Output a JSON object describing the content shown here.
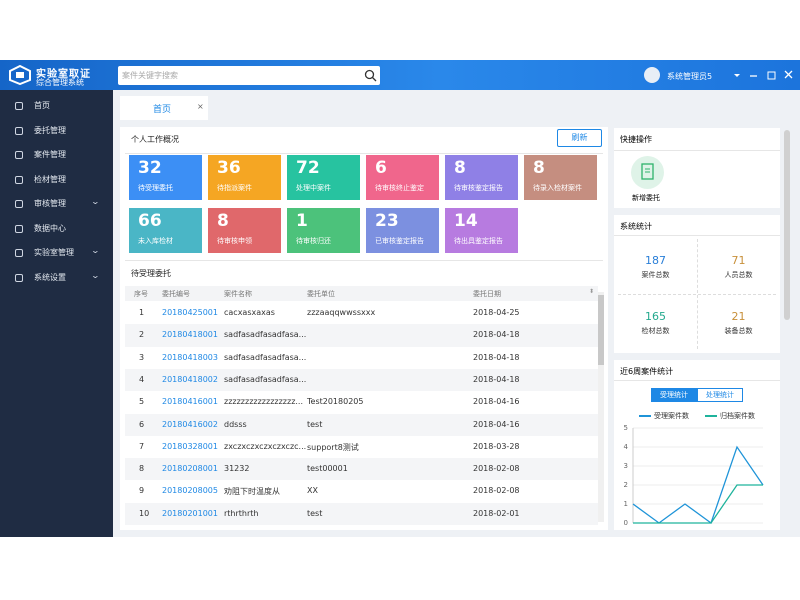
{
  "header": {
    "logo_line1": "实验室取证",
    "logo_line2": "综合管理系统",
    "search_placeholder": "案件关键字搜索",
    "user": "系统管理员5"
  },
  "sidebar": {
    "items": [
      {
        "label": "首页",
        "has_children": false
      },
      {
        "label": "委托管理",
        "has_children": false
      },
      {
        "label": "案件管理",
        "has_children": false
      },
      {
        "label": "检材管理",
        "has_children": false
      },
      {
        "label": "审核管理",
        "has_children": true
      },
      {
        "label": "数据中心",
        "has_children": false
      },
      {
        "label": "实验室管理",
        "has_children": true
      },
      {
        "label": "系统设置",
        "has_children": true
      }
    ]
  },
  "tab": {
    "label": "首页"
  },
  "overview": {
    "title": "个人工作概况",
    "refresh": "刷新",
    "tiles": [
      {
        "value": 32,
        "label": "待受理委托",
        "color": "#3c8ff5"
      },
      {
        "value": 36,
        "label": "待指派案件",
        "color": "#f5a623"
      },
      {
        "value": 72,
        "label": "处理中案件",
        "color": "#27c3a0"
      },
      {
        "value": 6,
        "label": "待审核终止鉴定",
        "color": "#f0668c"
      },
      {
        "value": 8,
        "label": "待审核鉴定报告",
        "color": "#8f80e6"
      },
      {
        "value": 8,
        "label": "待录入检材案件",
        "color": "#c58e80"
      },
      {
        "value": 66,
        "label": "未入库检材",
        "color": "#4ab6c6"
      },
      {
        "value": 8,
        "label": "待审核申领",
        "color": "#e0686b"
      },
      {
        "value": 1,
        "label": "待审核归还",
        "color": "#4cc27b"
      },
      {
        "value": 23,
        "label": "已审核鉴定报告",
        "color": "#7c90e0"
      },
      {
        "value": 14,
        "label": "待出具鉴定报告",
        "color": "#b77be0"
      }
    ]
  },
  "table": {
    "title": "待受理委托",
    "columns": [
      "序号",
      "委托编号",
      "案件名称",
      "委托单位",
      "委托日期"
    ],
    "rows": [
      [
        1,
        "20180425001",
        "cacxasxaxas",
        "zzzaaqqwwssxxx",
        "2018-04-25"
      ],
      [
        2,
        "20180418001",
        "sadfasadfasadfasa...",
        null,
        "2018-04-18"
      ],
      [
        3,
        "20180418003",
        "sadfasadfasadfasa...",
        null,
        "2018-04-18"
      ],
      [
        4,
        "20180418002",
        "sadfasadfasadfasa...",
        null,
        "2018-04-18"
      ],
      [
        5,
        "20180416001",
        "zzzzzzzzzzzzzzzzz...",
        "Test20180205",
        "2018-04-16"
      ],
      [
        6,
        "20180416002",
        "ddsss",
        "test",
        "2018-04-16"
      ],
      [
        7,
        "20180328001",
        "zxczxczxczxczxczc...",
        "support8测试",
        "2018-03-28"
      ],
      [
        8,
        "20180208001",
        "31232",
        "test00001",
        "2018-02-08"
      ],
      [
        9,
        "20180208005",
        "劝阻下时温度从",
        "XX",
        "2018-02-08"
      ],
      [
        10,
        "20180201001",
        "rthrthrth",
        "test",
        "2018-02-01"
      ]
    ]
  },
  "quick": {
    "title": "快捷操作",
    "action": "新增委托"
  },
  "stats": {
    "title": "系统统计",
    "items": [
      {
        "value": 187,
        "label": "案件总数",
        "color": "#2a7fd8"
      },
      {
        "value": 71,
        "label": "人员总数",
        "color": "#c8903a"
      },
      {
        "value": 165,
        "label": "检材总数",
        "color": "#23a98e"
      },
      {
        "value": 21,
        "label": "装备总数",
        "color": "#c8903a"
      }
    ]
  },
  "week_chart": {
    "type": "line",
    "title": "近6周案件统计",
    "buttons": [
      "受理统计",
      "处理统计"
    ],
    "active_button": 0,
    "categories": [
      null,
      null,
      null,
      null,
      null,
      null
    ],
    "series": [
      {
        "name": "受理案件数",
        "color": "#1f94d8",
        "values": [
          1,
          0,
          1,
          0,
          4,
          2
        ]
      },
      {
        "name": "归档案件数",
        "color": "#1fb39c",
        "values": [
          0,
          0,
          0,
          0,
          2,
          2
        ]
      }
    ],
    "ylim": [
      0,
      5
    ],
    "yticks": [
      0,
      1,
      2,
      3,
      4,
      5
    ],
    "grid": true
  }
}
